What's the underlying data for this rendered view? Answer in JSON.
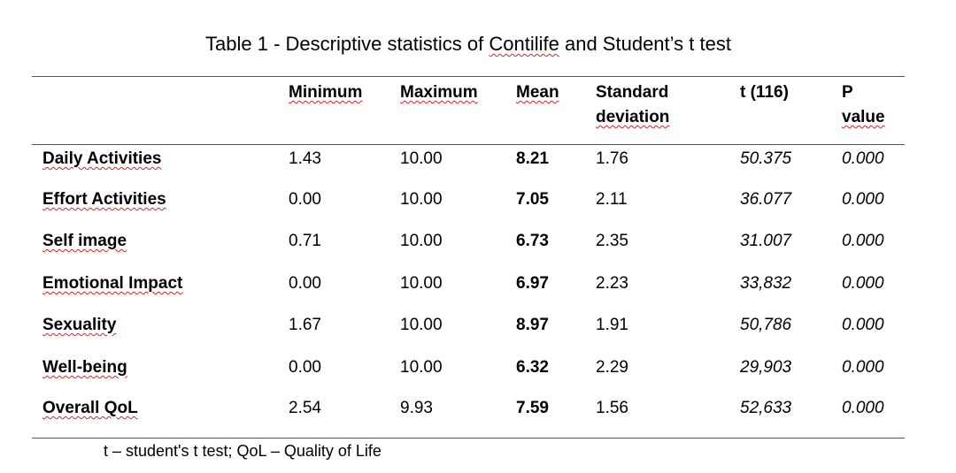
{
  "title": {
    "prefix": "Table 1 - Descriptive statistics of ",
    "highlight": "Contilife",
    "suffix": " and Student’s t test"
  },
  "headers": {
    "minimum": "Minimum",
    "maximum": "Maximum",
    "mean": "Mean",
    "sd_line1": "Standard",
    "sd_line2": "deviation",
    "t": "t (116)",
    "p_line1": "P",
    "p_line2": "value"
  },
  "rows": [
    {
      "label": "Daily Activities",
      "min": "1.43",
      "max": "10.00",
      "mean": "8.21",
      "sd": "1.76",
      "t": "50.375",
      "p": "0.000"
    },
    {
      "label": "Effort Activities",
      "min": "0.00",
      "max": "10.00",
      "mean": "7.05",
      "sd": "2.11",
      "t": "36.077",
      "p": "0.000"
    },
    {
      "label": "Self image",
      "min": "0.71",
      "max": "10.00",
      "mean": "6.73",
      "sd": "2.35",
      "t": "31.007",
      "p": "0.000"
    },
    {
      "label": "Emotional Impact",
      "min": "0.00",
      "max": "10.00",
      "mean": "6.97",
      "sd": "2.23",
      "t": "33,832",
      "p": "0.000"
    },
    {
      "label": "Sexuality",
      "min": "1.67",
      "max": "10.00",
      "mean": "8.97",
      "sd": "1.91",
      "t": "50,786",
      "p": "0.000"
    },
    {
      "label": "Well-being",
      "min": "0.00",
      "max": "10.00",
      "mean": "6.32",
      "sd": "2.29",
      "t": "29,903",
      "p": "0.000"
    },
    {
      "label": "Overall QoL",
      "min": "2.54",
      "max": "9.93",
      "mean": "7.59",
      "sd": "1.56",
      "t": "52,633",
      "p": "0.000"
    }
  ],
  "footnote": "t – student's t test; QoL – Quality of Life",
  "colors": {
    "spellcheck_underline": "#e02020",
    "rule": "#555555"
  }
}
